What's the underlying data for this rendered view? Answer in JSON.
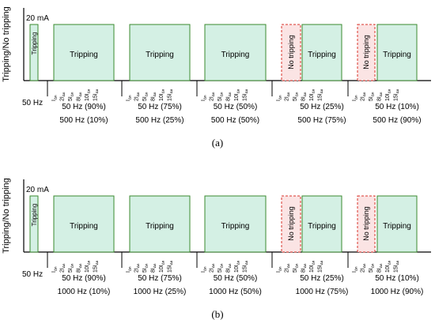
{
  "panels": [
    {
      "caption": "(a)",
      "y_axis_label": "Tripping/No tripping",
      "current_label": "20 mA",
      "single_freq_label": "50 Hz",
      "single_box_label": "Tripping",
      "tick_labels": [
        "I",
        "2I",
        "5I",
        "8I",
        "10I",
        "15I"
      ],
      "tick_subscript": "Δn",
      "groups": [
        {
          "line1": "50 Hz (90%)",
          "line2": "500 Hz (10%)",
          "no_tripping": false,
          "box_label": "Tripping"
        },
        {
          "line1": "50 Hz (75%)",
          "line2": "500 Hz (25%)",
          "no_tripping": false,
          "box_label": "Tripping"
        },
        {
          "line1": "50 Hz (50%)",
          "line2": "500 Hz (50%)",
          "no_tripping": false,
          "box_label": "Tripping"
        },
        {
          "line1": "50 Hz (25%)",
          "line2": "500 Hz (75%)",
          "no_tripping": true,
          "no_trip_label": "No tripping",
          "box_label": "Tripping"
        },
        {
          "line1": "50 Hz (10%)",
          "line2": "500 Hz (90%)",
          "no_tripping": true,
          "no_trip_label": "No tripping",
          "box_label": "Tripping"
        }
      ]
    },
    {
      "caption": "(b)",
      "y_axis_label": "Tripping/No tripping",
      "current_label": "20 mA",
      "single_freq_label": "50 Hz",
      "single_box_label": "Tripping",
      "tick_labels": [
        "I",
        "2I",
        "5I",
        "8I",
        "10I",
        "15I"
      ],
      "tick_subscript": "Δn",
      "groups": [
        {
          "line1": "50 Hz (90%)",
          "line2": "1000 Hz (10%)",
          "no_tripping": false,
          "box_label": "Tripping"
        },
        {
          "line1": "50 Hz (75%)",
          "line2": "1000 Hz (25%)",
          "no_tripping": false,
          "box_label": "Tripping"
        },
        {
          "line1": "50 Hz (50%)",
          "line2": "1000 Hz (50%)",
          "no_tripping": false,
          "box_label": "Tripping"
        },
        {
          "line1": "50 Hz (25%)",
          "line2": "1000 Hz (75%)",
          "no_tripping": true,
          "no_trip_label": "No tripping",
          "box_label": "Tripping"
        },
        {
          "line1": "50 Hz (10%)",
          "line2": "1000 Hz (90%)",
          "no_tripping": true,
          "no_trip_label": "No tripping",
          "box_label": "Tripping"
        }
      ]
    }
  ],
  "colors": {
    "trip_fill": "#d4f0e4",
    "trip_stroke": "#3a8a2e",
    "no_trip_fill": "#fbe4e4",
    "no_trip_stroke": "#d9342b",
    "axis": "#000000"
  }
}
